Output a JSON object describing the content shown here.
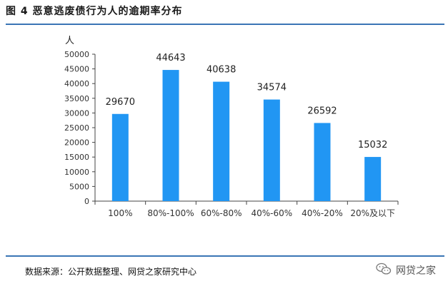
{
  "figure": {
    "title": "图 4   恶意逃废债行为人的逾期率分布",
    "source": "数据来源：公开数据整理、网贷之家研究中心",
    "watermark": "网贷之家"
  },
  "colors": {
    "bar": "#2196f3",
    "rule": "#3a75b5",
    "axis": "#444444"
  },
  "chart_data": {
    "type": "bar",
    "ylabel": "人",
    "ylim": [
      0,
      50000
    ],
    "yticks": [
      0,
      5000,
      10000,
      15000,
      20000,
      25000,
      30000,
      35000,
      40000,
      45000,
      50000
    ],
    "categories": [
      "100%",
      "80%-100%",
      "60%-80%",
      "40%-60%",
      "40%-20%",
      "20%及以下"
    ],
    "values": [
      29670,
      44643,
      40638,
      34574,
      26592,
      15032
    ],
    "data_labels": true,
    "grid": false
  }
}
